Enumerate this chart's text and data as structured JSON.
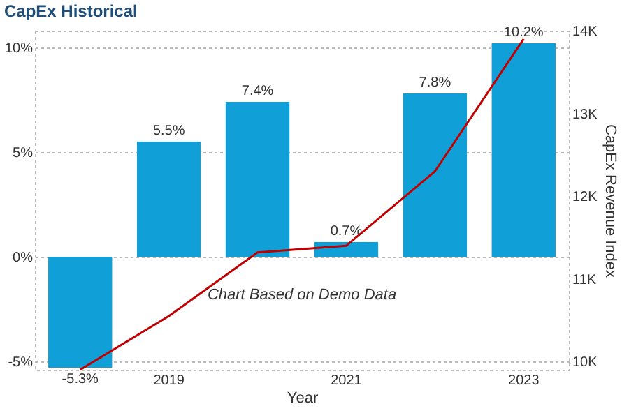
{
  "chart_data": {
    "type": "bar",
    "title": "CapEx Historical",
    "xlabel": "Year",
    "y2label": "CapEx Revenue Index",
    "annotations": [
      "Chart Based on Demo Data"
    ],
    "categories": [
      null,
      "2019",
      null,
      "2021",
      null,
      "2023"
    ],
    "series": [
      {
        "color": "#119fd8",
        "values": [
          -5.3,
          5.5,
          7.4,
          0.7,
          7.8,
          10.2
        ],
        "value_labels": [
          "-5.3%",
          "5.5%",
          "7.4%",
          "0.7%",
          "7.8%",
          "10.2%"
        ]
      },
      {
        "type": "line",
        "axis": "y2",
        "color": "#c00000",
        "values": [
          9900,
          10550,
          11320,
          11400,
          12300,
          13900
        ]
      }
    ],
    "ylim": [
      -5.4,
      10.8
    ],
    "yticks": [
      {
        "value": -5,
        "label": "-5%"
      },
      {
        "value": 0,
        "label": "0%"
      },
      {
        "value": 5,
        "label": "5%"
      },
      {
        "value": 10,
        "label": "10%"
      }
    ],
    "y2lim": [
      9900,
      14000
    ],
    "y2ticks": [
      {
        "value": 10000,
        "label": "10K"
      },
      {
        "value": 11000,
        "label": "11K"
      },
      {
        "value": 12000,
        "label": "12K"
      },
      {
        "value": 13000,
        "label": "13K"
      },
      {
        "value": 14000,
        "label": "14K"
      }
    ],
    "grid": "y"
  }
}
